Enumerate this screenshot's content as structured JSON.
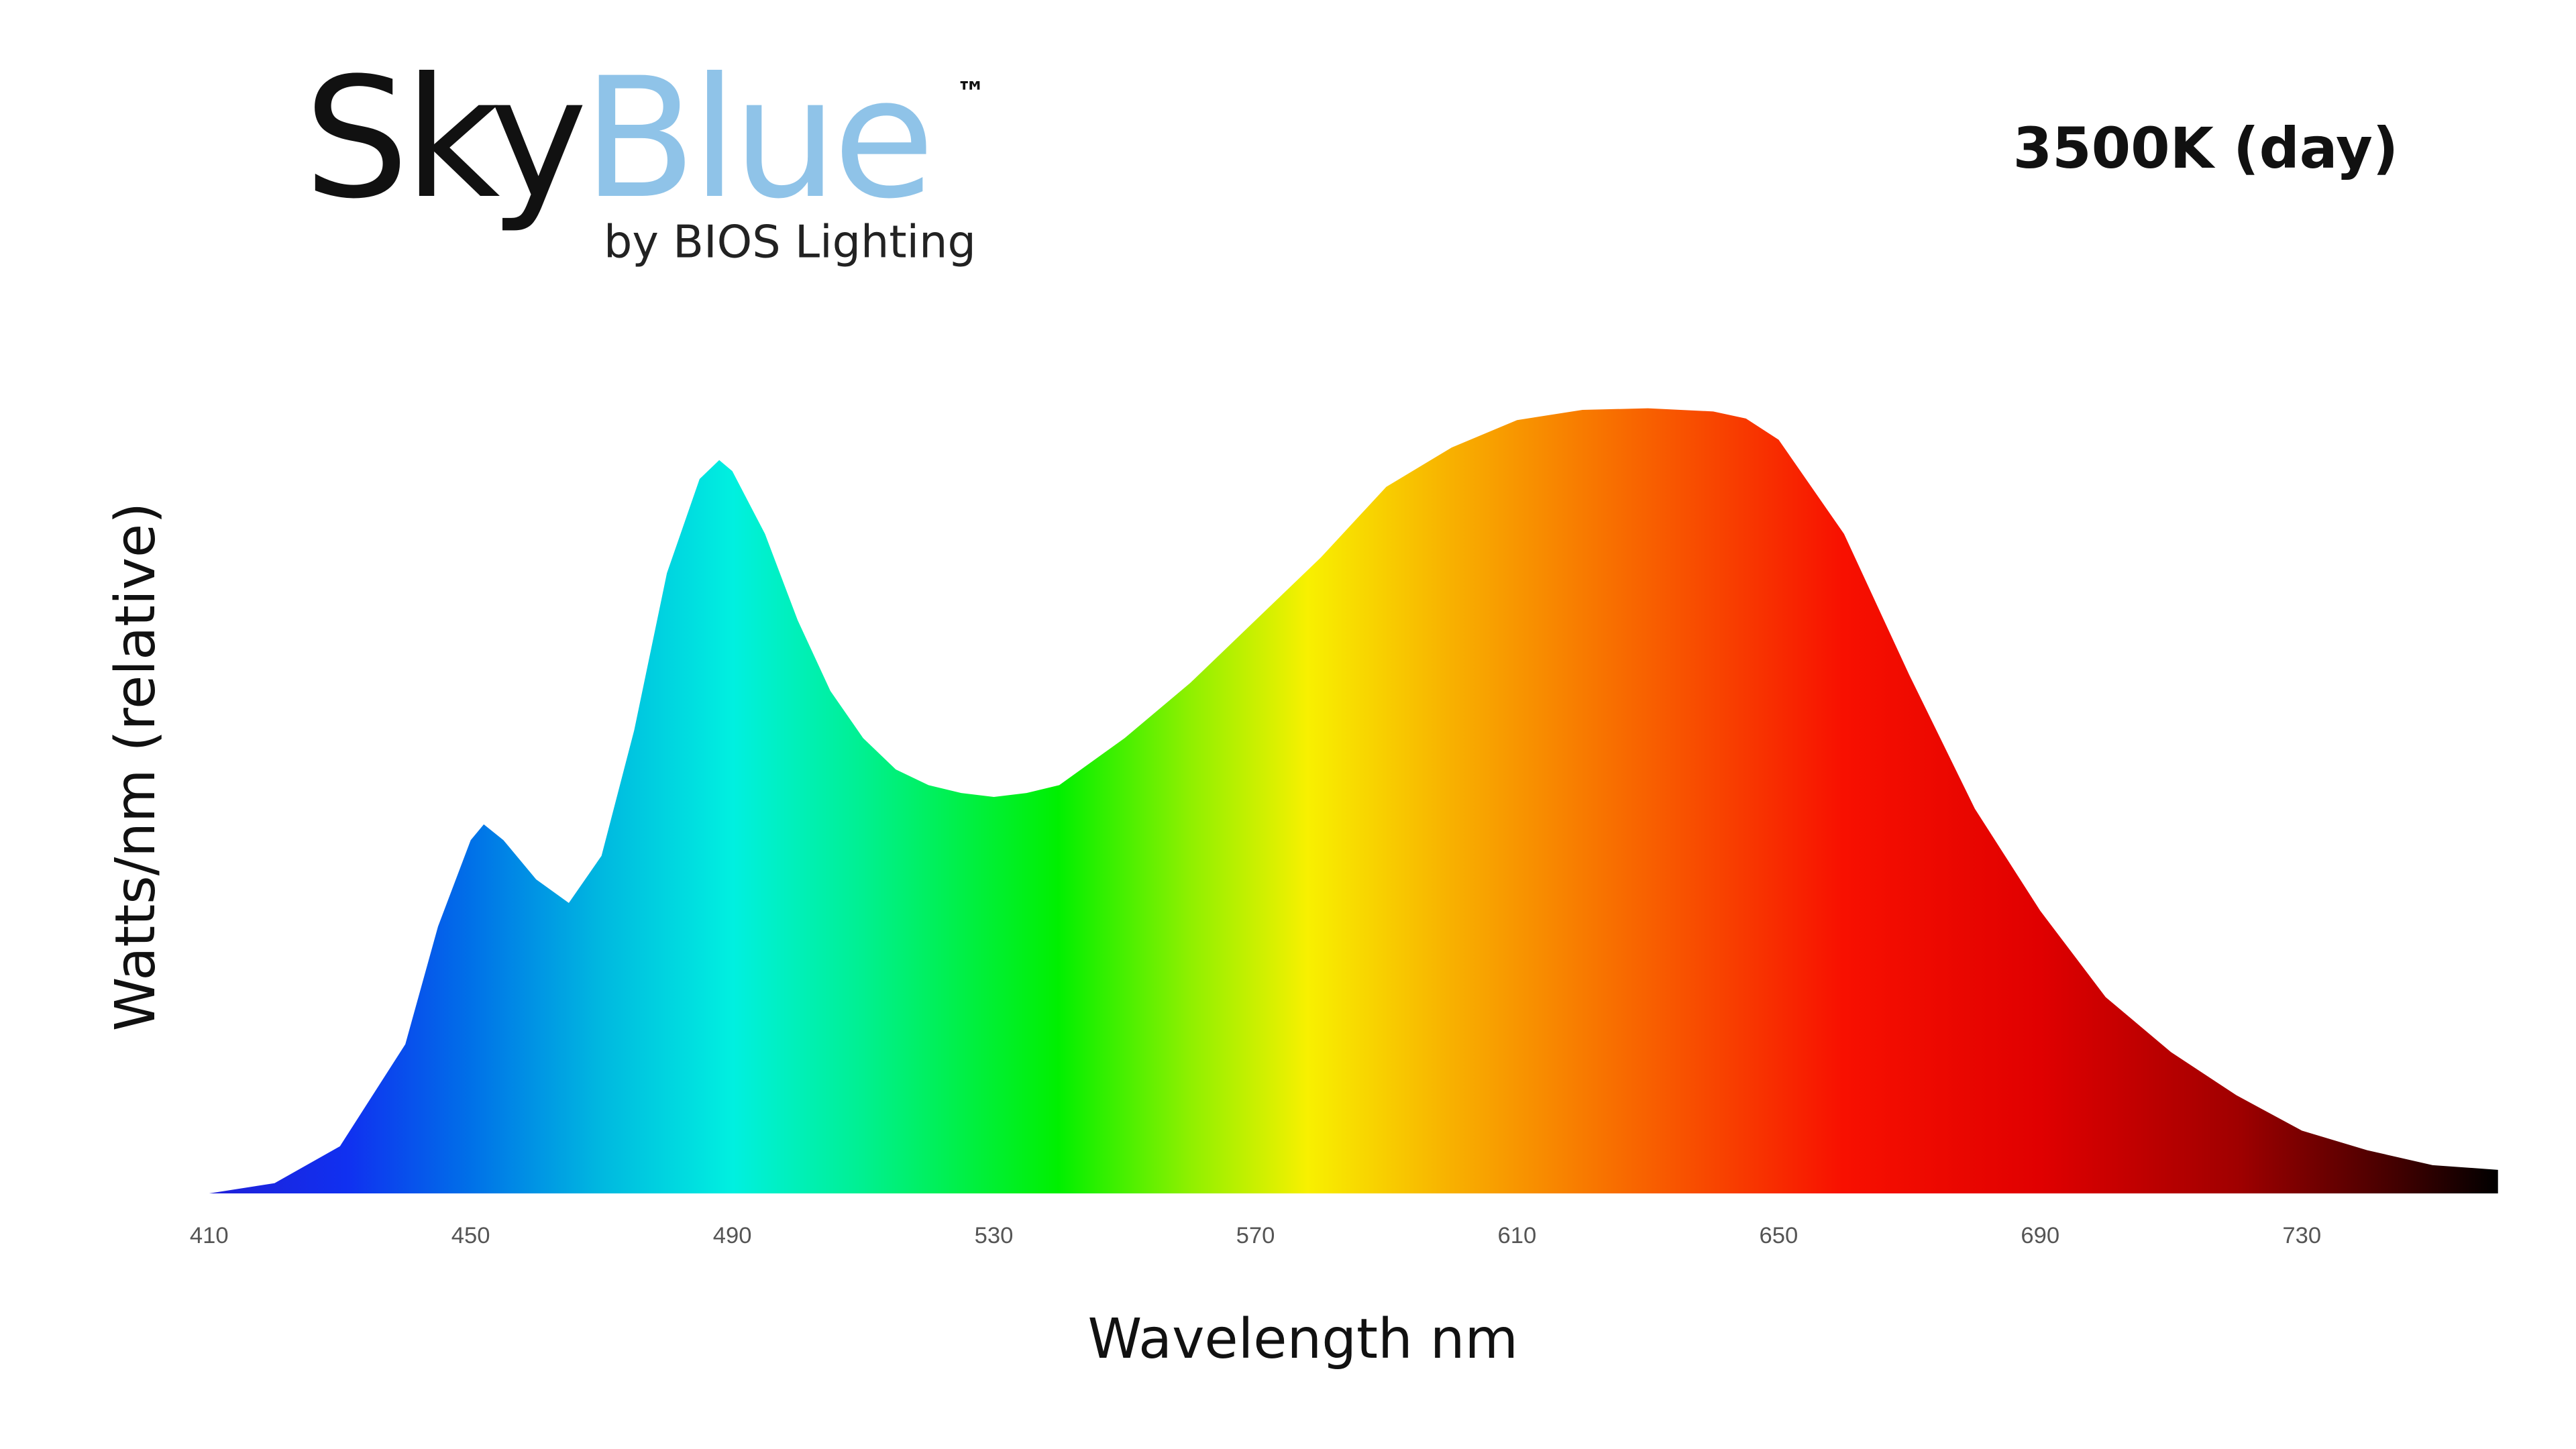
{
  "logo": {
    "brand": [
      "Sky",
      "Blue"
    ],
    "mark": "™",
    "tagline": "by BIOS Lighting"
  },
  "chart_data": {
    "type": "area",
    "title": "3500K (day)",
    "x_label": "Wavelength nm",
    "y_label": "Watts/nm (relative)",
    "x": [
      410,
      420,
      430,
      440,
      445,
      450,
      452,
      455,
      460,
      465,
      470,
      475,
      480,
      485,
      488,
      490,
      495,
      500,
      505,
      510,
      515,
      520,
      525,
      530,
      535,
      540,
      550,
      560,
      570,
      580,
      590,
      600,
      610,
      620,
      630,
      640,
      645,
      650,
      660,
      670,
      680,
      690,
      700,
      710,
      720,
      730,
      740,
      750,
      760
    ],
    "values": [
      0,
      1.3,
      6,
      19,
      34,
      45,
      47,
      45,
      40,
      37,
      43,
      59,
      79,
      91,
      93.4,
      92,
      84,
      73,
      64,
      58,
      54,
      52,
      51,
      50.5,
      51,
      52,
      58,
      65,
      73,
      81,
      90,
      95,
      98.5,
      99.8,
      100,
      99.6,
      98.7,
      96,
      84,
      66,
      49,
      36,
      25,
      18,
      12.5,
      8,
      5.5,
      3.6,
      3
    ],
    "xlim": [
      410,
      760
    ],
    "ylim": [
      0,
      100
    ],
    "xticks": [
      410,
      450,
      490,
      530,
      570,
      610,
      650,
      690,
      730
    ]
  }
}
